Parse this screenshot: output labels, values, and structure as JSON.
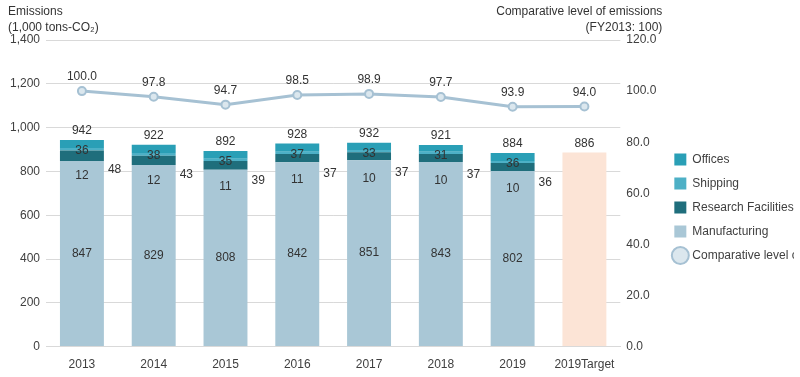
{
  "chart_data": {
    "type": "bar",
    "stacked": true,
    "grid": true,
    "data_labels": true,
    "legend": "right",
    "ylabel": [
      "Emissions",
      "(1,000 tons-CO₂)"
    ],
    "y2label": [
      "Comparative level of emissions",
      "(FY2013: 100)"
    ],
    "categories": [
      "2013",
      "2014",
      "2015",
      "2016",
      "2017",
      "2018",
      "2019",
      "2019Target"
    ],
    "series": [
      {
        "name": "Manufacturing",
        "color": "#a9c7d6",
        "values": [
          847,
          829,
          808,
          842,
          851,
          843,
          802,
          null
        ]
      },
      {
        "name": "Research Facilities",
        "color": "#1f6e7c",
        "values": [
          48,
          43,
          39,
          37,
          37,
          37,
          36,
          null
        ]
      },
      {
        "name": "Shipping",
        "color": "#4db0c6",
        "values": [
          12,
          12,
          11,
          11,
          10,
          10,
          10,
          null
        ]
      },
      {
        "name": "Offices",
        "color": "#2a9fb6",
        "values": [
          36,
          38,
          35,
          37,
          33,
          31,
          36,
          null
        ]
      },
      {
        "color": "#fce4d6",
        "values": [
          null,
          null,
          null,
          null,
          null,
          null,
          null,
          886
        ]
      },
      {
        "name": "Comparative level of emissions",
        "type": "line",
        "axis": "y2",
        "color": "#a6c1d3",
        "marker": "circle",
        "values": [
          100,
          97.8,
          94.7,
          98.5,
          98.9,
          97.7,
          93.9,
          94
        ],
        "value_labels": [
          "100.0",
          "97.8",
          "94.7",
          "98.5",
          "98.9",
          "97.7",
          "93.9",
          "94.0"
        ]
      }
    ],
    "totals": [
      942,
      922,
      892,
      928,
      932,
      921,
      884,
      null
    ],
    "ylim": [
      0,
      1400
    ],
    "yticks": [
      0,
      200,
      400,
      600,
      800,
      {
        "value": 1000,
        "label": "1,000"
      },
      {
        "value": 1200,
        "label": "1,200"
      },
      {
        "value": 1400,
        "label": "1,400"
      }
    ],
    "y2lim": [
      0,
      120
    ],
    "y2ticks": [
      {
        "value": 0,
        "label": "0.0"
      },
      {
        "value": 20,
        "label": "20.0"
      },
      {
        "value": 40,
        "label": "40.0"
      },
      {
        "value": 60,
        "label": "60.0"
      },
      {
        "value": 80,
        "label": "80.0"
      },
      {
        "value": 100,
        "label": "100.0"
      },
      {
        "value": 120,
        "label": "120.0"
      }
    ]
  }
}
